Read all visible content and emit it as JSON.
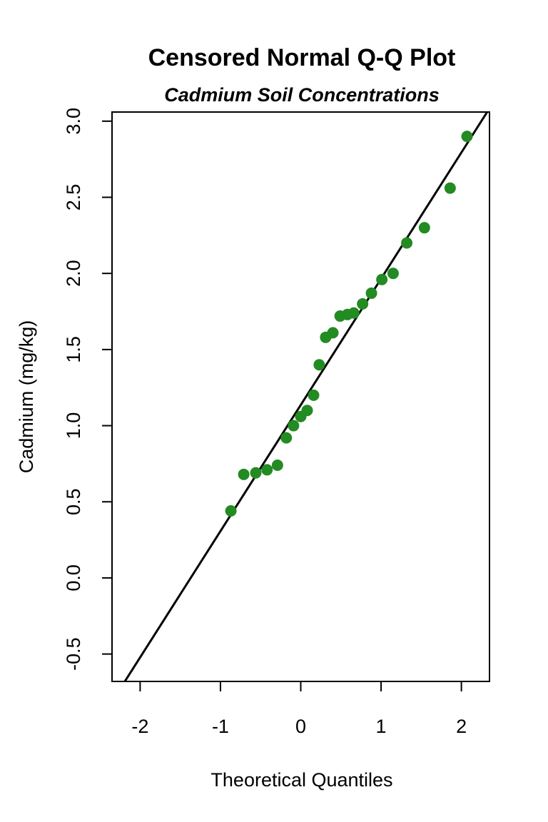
{
  "chart_data": {
    "type": "scatter",
    "title": "Censored Normal Q-Q Plot",
    "subtitle": "Cadmium Soil Concentrations",
    "xlabel": "Theoretical Quantiles",
    "ylabel": "Cadmium (mg/kg)",
    "xlim": [
      -2.35,
      2.35
    ],
    "ylim": [
      -0.68,
      3.06
    ],
    "x_ticks": [
      -2,
      -1,
      0,
      1,
      2
    ],
    "x_tick_labels": [
      "-2",
      "-1",
      "0",
      "1",
      "2"
    ],
    "y_ticks": [
      -0.5,
      0.0,
      0.5,
      1.0,
      1.5,
      2.0,
      2.5,
      3.0
    ],
    "y_tick_labels": [
      "-0.5",
      "0.0",
      "0.5",
      "1.0",
      "1.5",
      "2.0",
      "2.5",
      "3.0"
    ],
    "grid": false,
    "point_color": "#228B22",
    "line_color": "#000000",
    "points": [
      {
        "x": -0.87,
        "y": 0.44
      },
      {
        "x": -0.71,
        "y": 0.68
      },
      {
        "x": -0.56,
        "y": 0.69
      },
      {
        "x": -0.42,
        "y": 0.71
      },
      {
        "x": -0.29,
        "y": 0.74
      },
      {
        "x": -0.18,
        "y": 0.92
      },
      {
        "x": -0.09,
        "y": 1.0
      },
      {
        "x": 0.0,
        "y": 1.06
      },
      {
        "x": 0.08,
        "y": 1.1
      },
      {
        "x": 0.16,
        "y": 1.2
      },
      {
        "x": 0.23,
        "y": 1.4
      },
      {
        "x": 0.31,
        "y": 1.58
      },
      {
        "x": 0.4,
        "y": 1.61
      },
      {
        "x": 0.49,
        "y": 1.72
      },
      {
        "x": 0.58,
        "y": 1.73
      },
      {
        "x": 0.66,
        "y": 1.74
      },
      {
        "x": 0.77,
        "y": 1.8
      },
      {
        "x": 0.88,
        "y": 1.87
      },
      {
        "x": 1.01,
        "y": 1.96
      },
      {
        "x": 1.15,
        "y": 2.0
      },
      {
        "x": 1.32,
        "y": 2.2
      },
      {
        "x": 1.54,
        "y": 2.3
      },
      {
        "x": 1.86,
        "y": 2.56
      },
      {
        "x": 2.07,
        "y": 2.9
      }
    ],
    "reference_line": {
      "intercept": 1.136,
      "slope": 0.829
    }
  }
}
